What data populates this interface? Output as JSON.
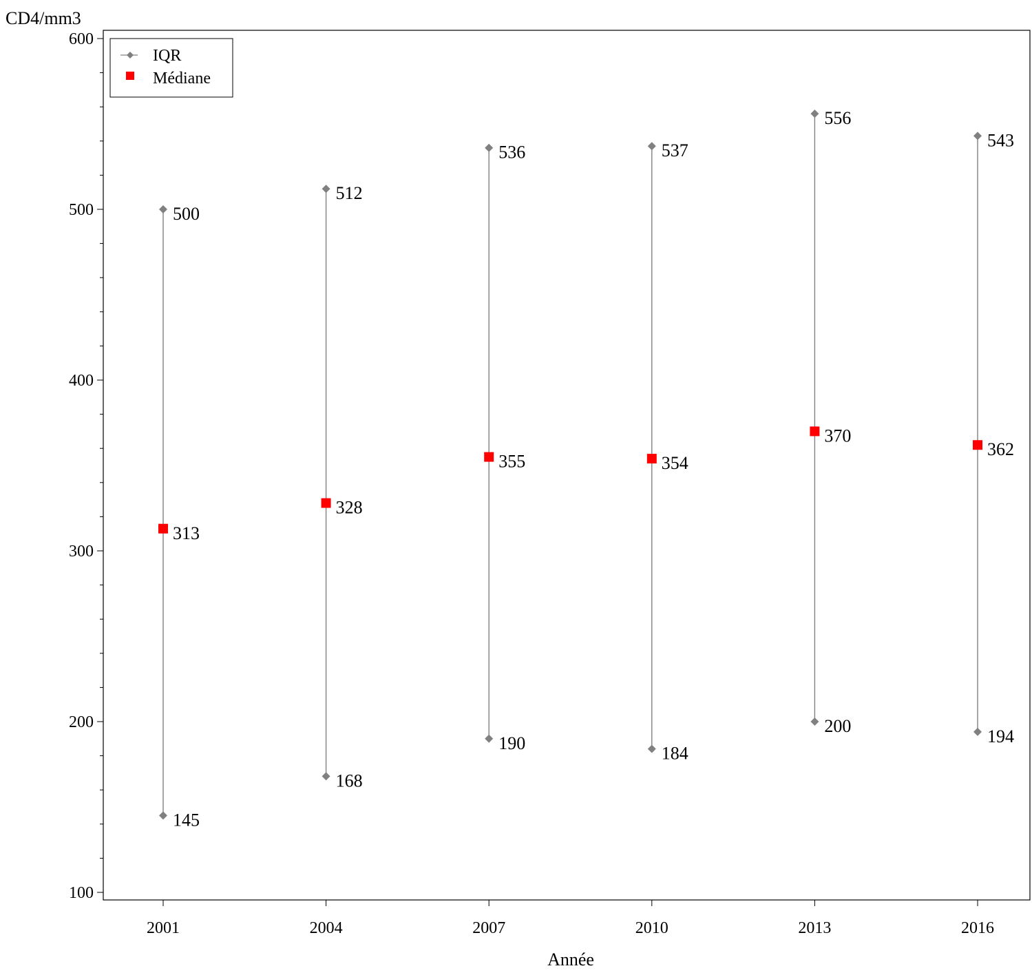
{
  "chart_data": {
    "type": "scatter",
    "ylabel": "CD4/mm3",
    "xlabel": "Année",
    "ylim": [
      100,
      600
    ],
    "yticks": [
      100,
      200,
      300,
      400,
      500,
      600
    ],
    "categories": [
      "2001",
      "2004",
      "2007",
      "2010",
      "2013",
      "2016"
    ],
    "grid": false,
    "legend_position": "top-left",
    "series": [
      {
        "name": "IQR",
        "marker": "diamond",
        "color": "#808080",
        "upper": [
          500,
          512,
          536,
          537,
          556,
          543
        ],
        "lower": [
          145,
          168,
          190,
          184,
          200,
          194
        ]
      },
      {
        "name": "Médiane",
        "marker": "square",
        "color": "#ff0000",
        "values": [
          313,
          328,
          355,
          354,
          370,
          362
        ]
      }
    ]
  }
}
